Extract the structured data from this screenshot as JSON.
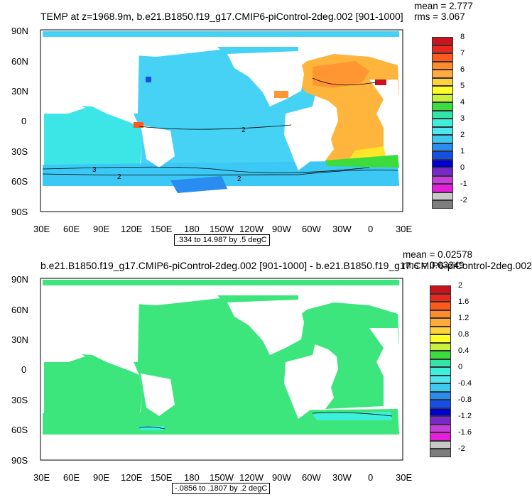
{
  "panels": [
    {
      "title": "TEMP at z=1968.9m, b.e21.B1850.f19_g17.CMIP6-piControl-2deg.002 [901-1000]",
      "mean": "mean = 2.777",
      "rms": "rms = 3.067",
      "range": ".334 to 14.987 by .5 degC",
      "colorbar_labels": [
        "8",
        "7",
        "6",
        "5",
        "4",
        "3",
        "2",
        "1",
        "0",
        "-1",
        "-2"
      ],
      "contour_labels": [
        "2",
        "3",
        "2",
        "2"
      ]
    },
    {
      "title": "b.e21.B1850.f19_g17.CMIP6-piControl-2deg.002 [901-1000] - b.e21.B1850.f19_g17.CMIP6-piControl-2deg.002",
      "mean": "mean = 0.02578",
      "rms": "rms = 0.03249",
      "range": "-.0856 to .1807 by .2 degC",
      "colorbar_labels": [
        "2",
        "1.6",
        "1.2",
        "0.8",
        "0.4",
        "0",
        "-0.4",
        "-0.8",
        "-1.2",
        "-1.6",
        "-2"
      ],
      "contour_labels": []
    }
  ],
  "axes": {
    "lat_labels": [
      "90N",
      "60N",
      "30N",
      "0",
      "30S",
      "60S",
      "90S"
    ],
    "lon_labels": [
      "30E",
      "60E",
      "90E",
      "120E",
      "150E",
      "180",
      "150W",
      "120W",
      "90W",
      "60W",
      "30W",
      "0",
      "30E"
    ]
  },
  "colorbar_colors": [
    "#c8141e",
    "#e8281e",
    "#ff5a1e",
    "#ff8c28",
    "#ffaa3c",
    "#ffd23c",
    "#ffff28",
    "#c8f03c",
    "#3cdc3c",
    "#32e6aa",
    "#3cf0dc",
    "#50e6f0",
    "#3cc8f0",
    "#288cf0",
    "#1450e6",
    "#0000d2",
    "#7828c8",
    "#c83cdc",
    "#e61edc",
    "#c8c8c8",
    "#7d7d7d"
  ],
  "map_colors": {
    "ocean_deep_pacific": "#46d2f5",
    "ocean_indian": "#3ce6e6",
    "ocean_southern": "#3cc8f5",
    "atlantic_warm": "#ffb43c",
    "atlantic_north": "#ff9632",
    "atlantic_south_green": "#3cdc3c",
    "atlantic_south_yellow": "#ffe628",
    "diff_green": "#3ce67d",
    "diff_cyan": "#3cf0dc"
  }
}
